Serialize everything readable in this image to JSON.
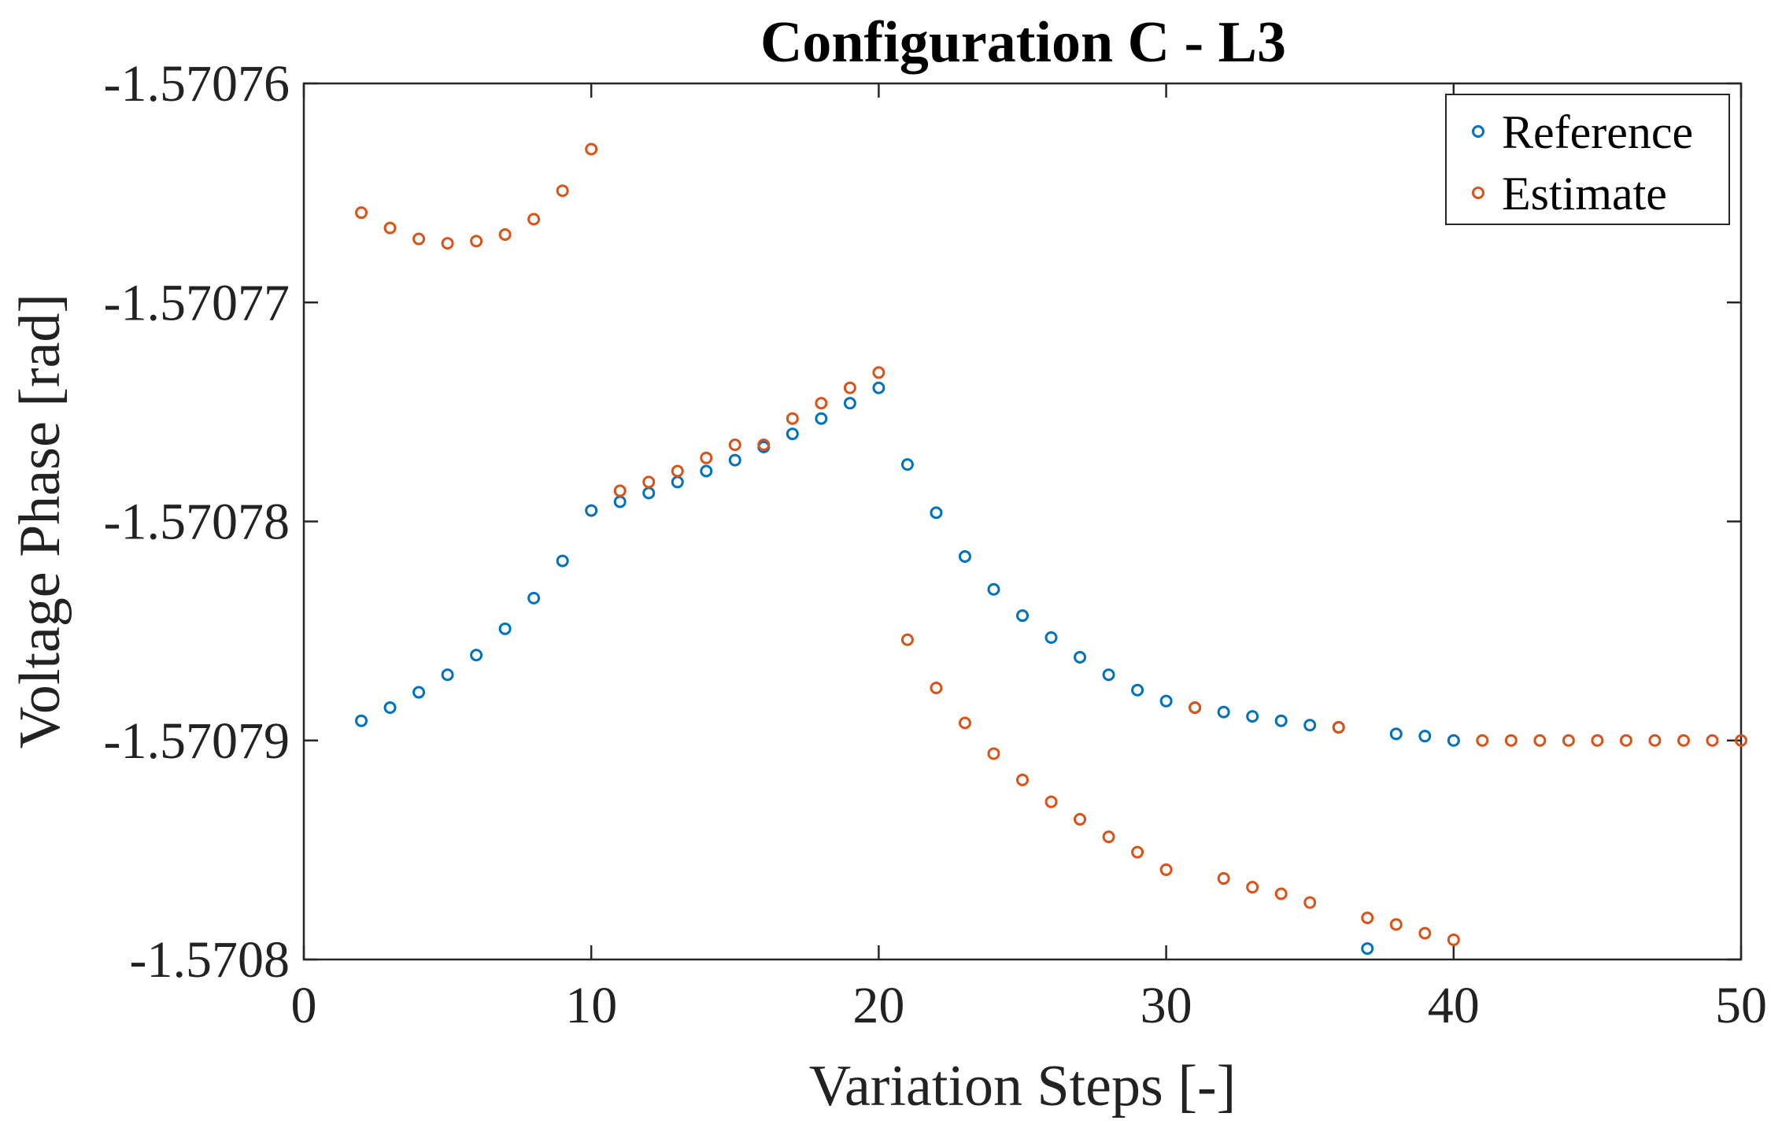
{
  "chart_data": {
    "type": "scatter",
    "title": "Configuration C - L3",
    "xlabel": "Variation Steps [-]",
    "ylabel": "Voltage Phase [rad]",
    "xlim": [
      0,
      50
    ],
    "ylim": [
      -1.5708,
      -1.57076
    ],
    "xticks": [
      0,
      10,
      20,
      30,
      40,
      50
    ],
    "xtick_labels": [
      "0",
      "10",
      "20",
      "30",
      "40",
      "50"
    ],
    "yticks": [
      -1.5708,
      -1.57079,
      -1.57078,
      -1.57077,
      -1.57076
    ],
    "ytick_labels": [
      "-1.5708",
      "-1.57079",
      "-1.57078",
      "-1.57077",
      "-1.57076"
    ],
    "legend": {
      "position": "top-right",
      "entries": [
        "Reference",
        "Estimate"
      ]
    },
    "series": [
      {
        "name": "Reference",
        "color": "#0072BD",
        "x": [
          2,
          3,
          4,
          5,
          6,
          7,
          8,
          9,
          10,
          11,
          12,
          13,
          14,
          15,
          16,
          17,
          18,
          19,
          20,
          21,
          22,
          23,
          24,
          25,
          26,
          27,
          28,
          29,
          30,
          31,
          32,
          33,
          34,
          35,
          36,
          37,
          38,
          39,
          40
        ],
        "y": [
          -1.5707891,
          -1.5707885,
          -1.5707878,
          -1.570787,
          -1.5707861,
          -1.5707849,
          -1.5707835,
          -1.5707818,
          -1.5707795,
          -1.5707791,
          -1.5707787,
          -1.5707782,
          -1.5707777,
          -1.5707772,
          -1.5707766,
          -1.570776,
          -1.5707753,
          -1.5707746,
          -1.5707739,
          -1.5707774,
          -1.5707796,
          -1.5707816,
          -1.5707831,
          -1.5707843,
          -1.5707853,
          -1.5707862,
          -1.570787,
          -1.5707877,
          -1.5707882,
          -1.5707885,
          -1.5707887,
          -1.5707889,
          -1.5707891,
          -1.5707893,
          -1.5707894,
          -1.5707995,
          -1.5707897,
          -1.5707898,
          -1.57079
        ]
      },
      {
        "name": "Estimate",
        "color": "#D95319",
        "x": [
          2,
          3,
          4,
          5,
          6,
          7,
          8,
          9,
          10,
          11,
          12,
          13,
          14,
          15,
          16,
          17,
          18,
          19,
          20,
          21,
          22,
          23,
          24,
          25,
          26,
          27,
          28,
          29,
          30,
          31,
          32,
          33,
          34,
          35,
          36,
          37,
          38,
          39,
          40,
          41,
          42,
          43,
          44,
          45,
          46,
          47,
          48,
          49,
          50
        ],
        "y": [
          -1.5707659,
          -1.5707666,
          -1.5707671,
          -1.5707673,
          -1.5707672,
          -1.5707669,
          -1.5707662,
          -1.5707649,
          -1.570763,
          -1.5707786,
          -1.5707782,
          -1.5707777,
          -1.5707771,
          -1.5707765,
          -1.5707765,
          -1.5707753,
          -1.5707746,
          -1.5707739,
          -1.5707732,
          -1.5707854,
          -1.5707876,
          -1.5707892,
          -1.5707906,
          -1.5707918,
          -1.5707928,
          -1.5707936,
          -1.5707944,
          -1.5707951,
          -1.5707959,
          -1.5707885,
          -1.5707963,
          -1.5707967,
          -1.570797,
          -1.5707974,
          -1.5707894,
          -1.5707981,
          -1.5707984,
          -1.5707988,
          -1.5707991,
          -1.57079,
          -1.57079,
          -1.57079,
          -1.57079,
          -1.57079,
          -1.57079,
          -1.57079,
          -1.57079,
          -1.57079,
          -1.57079
        ]
      }
    ]
  }
}
